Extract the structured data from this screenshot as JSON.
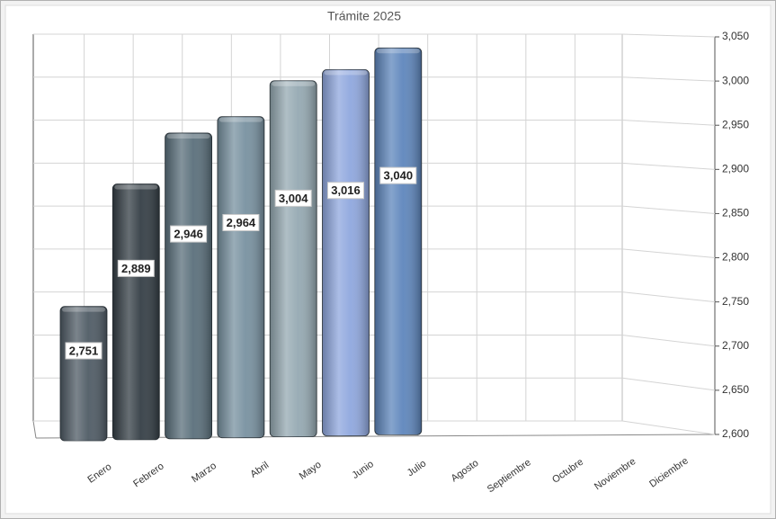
{
  "chart_data": {
    "type": "bar3d",
    "title": "Trámite 2025",
    "categories": [
      "Enero",
      "Febrero",
      "Marzo",
      "Abril",
      "Mayo",
      "Junio",
      "Julio",
      "Agosto",
      "Septiembre",
      "Octubre",
      "Noviembre",
      "Diciembre"
    ],
    "values": [
      2751,
      2889,
      2946,
      2964,
      3004,
      3016,
      3040,
      null,
      null,
      null,
      null,
      null
    ],
    "value_labels": [
      "2,751",
      "2,889",
      "2,946",
      "2,964",
      "3,004",
      "3,016",
      "3,040",
      null,
      null,
      null,
      null,
      null
    ],
    "colors": [
      "#4f5b65",
      "#343e45",
      "#5a6f7b",
      "#7891a0",
      "#95a9b2",
      "#8fa7de",
      "#5e86bc",
      null,
      null,
      null,
      null,
      null
    ],
    "ylim": [
      2600,
      3050
    ],
    "yticks": [
      {
        "value": 2600,
        "label": "2,600"
      },
      {
        "value": 2650,
        "label": "2,650"
      },
      {
        "value": 2700,
        "label": "2,700"
      },
      {
        "value": 2750,
        "label": "2,750"
      },
      {
        "value": 2800,
        "label": "2,800"
      },
      {
        "value": 2850,
        "label": "2,850"
      },
      {
        "value": 2900,
        "label": "2,900"
      },
      {
        "value": 2950,
        "label": "2,950"
      },
      {
        "value": 3000,
        "label": "3,000"
      },
      {
        "value": 3050,
        "label": "3,050"
      }
    ],
    "grid": true
  }
}
